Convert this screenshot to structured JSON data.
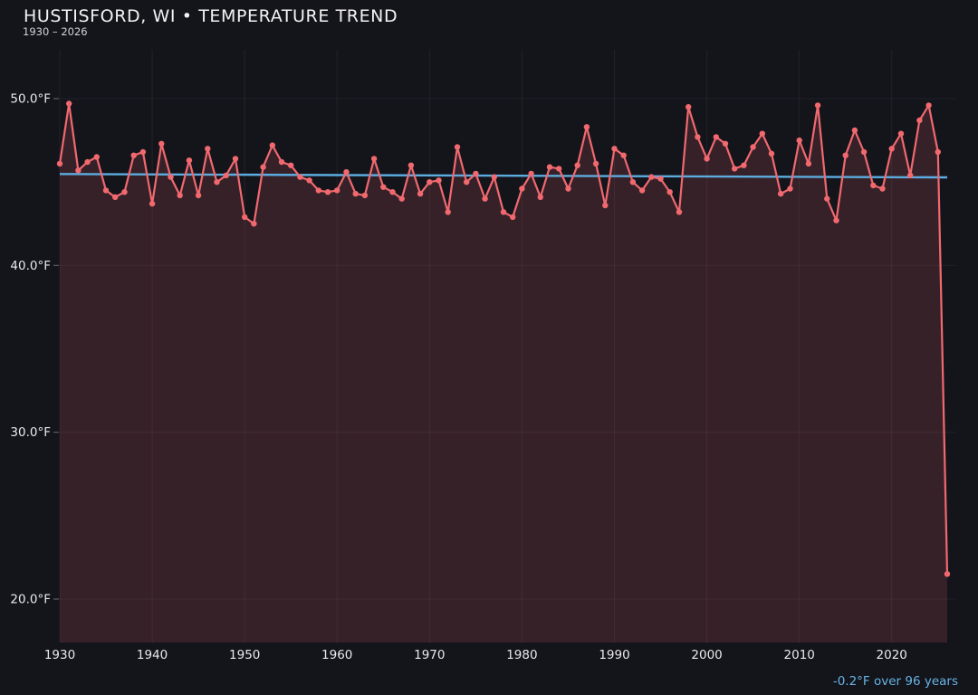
{
  "header": {
    "title": "HUSTISFORD, WI • TEMPERATURE TREND",
    "subtitle": "1930 – 2026"
  },
  "footer": {
    "trend_summary": "-0.2°F over 96 years"
  },
  "colors": {
    "background": "#14141b",
    "series_line": "#f0696f",
    "marker": "#f0696f",
    "area_fill": "rgba(240,105,111,0.16)",
    "trend_line": "#5cacdf",
    "grid": "rgba(255,255,255,0.06)",
    "tick_mark": "#6b6b75",
    "tick_text": "#e9e9ec",
    "footer_text": "#66b5e6"
  },
  "chart_data": {
    "type": "line",
    "title": "HUSTISFORD, WI • TEMPERATURE TREND",
    "subtitle": "1930 – 2026",
    "xlabel": "",
    "ylabel": "",
    "unit": "°F",
    "xlim": [
      1930,
      2027
    ],
    "ylim": [
      17.4,
      52.9
    ],
    "grid": true,
    "legend_position": "none",
    "x_tick_labels": [
      "1930",
      "1940",
      "1950",
      "1960",
      "1970",
      "1980",
      "1990",
      "2000",
      "2010",
      "2020"
    ],
    "y_tick_labels": [
      "50.0°F",
      "40.0°F",
      "30.0°F",
      "20.0°F"
    ],
    "y_tick_values": [
      50,
      40,
      30,
      20
    ],
    "series": [
      {
        "name": "annual-mean-temperature",
        "color": "#f0696f",
        "years": [
          1930,
          1931,
          1932,
          1933,
          1934,
          1935,
          1936,
          1937,
          1938,
          1939,
          1940,
          1941,
          1942,
          1943,
          1944,
          1945,
          1946,
          1947,
          1948,
          1949,
          1950,
          1951,
          1952,
          1953,
          1954,
          1955,
          1956,
          1957,
          1958,
          1959,
          1960,
          1961,
          1962,
          1963,
          1964,
          1965,
          1966,
          1967,
          1968,
          1969,
          1970,
          1971,
          1972,
          1973,
          1974,
          1975,
          1976,
          1977,
          1978,
          1979,
          1980,
          1981,
          1982,
          1983,
          1984,
          1985,
          1986,
          1987,
          1988,
          1989,
          1990,
          1991,
          1992,
          1993,
          1994,
          1995,
          1996,
          1997,
          1998,
          1999,
          2000,
          2001,
          2002,
          2003,
          2004,
          2005,
          2006,
          2007,
          2008,
          2009,
          2010,
          2011,
          2012,
          2013,
          2014,
          2015,
          2016,
          2017,
          2018,
          2019,
          2020,
          2021,
          2022,
          2023,
          2024,
          2025,
          2026
        ],
        "values": [
          46.1,
          49.7,
          45.7,
          46.2,
          46.5,
          44.5,
          44.1,
          44.4,
          46.6,
          46.8,
          43.7,
          47.3,
          45.3,
          44.2,
          46.3,
          44.2,
          47.0,
          45.0,
          45.4,
          46.4,
          42.9,
          42.5,
          45.9,
          47.2,
          46.2,
          46.0,
          45.3,
          45.1,
          44.5,
          44.4,
          44.5,
          45.6,
          44.3,
          44.2,
          46.4,
          44.7,
          44.4,
          44.0,
          46.0,
          44.3,
          45.0,
          45.1,
          43.2,
          47.1,
          45.0,
          45.5,
          44.0,
          45.3,
          43.2,
          42.9,
          44.6,
          45.5,
          44.1,
          45.9,
          45.8,
          44.6,
          46.0,
          48.3,
          46.1,
          43.6,
          47.0,
          46.6,
          45.0,
          44.5,
          45.3,
          45.2,
          44.4,
          43.2,
          49.5,
          47.7,
          46.4,
          47.7,
          47.3,
          45.8,
          46.0,
          47.1,
          47.9,
          46.7,
          44.3,
          44.6,
          47.5,
          46.1,
          49.6,
          44.0,
          42.7,
          46.6,
          48.1,
          46.8,
          44.8,
          44.6,
          47.0,
          47.9,
          45.4,
          48.7,
          49.6,
          46.8,
          21.5
        ]
      }
    ],
    "trend_line": {
      "label": "-0.2°F over 96 years",
      "start_year": 1930,
      "end_year": 2026,
      "start_value": 45.48,
      "end_value": 45.28,
      "color": "#5cacdf"
    }
  }
}
